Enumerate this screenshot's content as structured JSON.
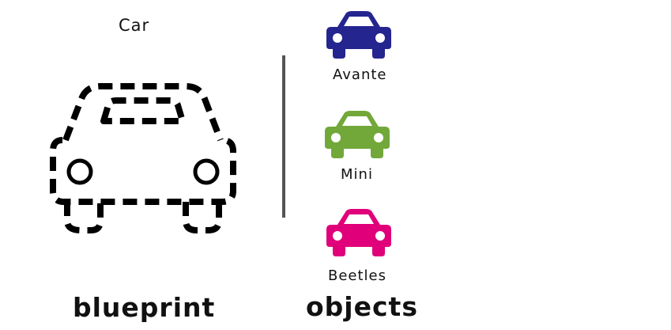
{
  "blueprint": {
    "title": "Car",
    "caption": "blueprint",
    "icon": "dashed-car-outline"
  },
  "objects": {
    "caption": "objects",
    "items": [
      {
        "label": "Avante",
        "color": "#24258f",
        "icon": "car-icon"
      },
      {
        "label": "Mini",
        "color": "#72a83a",
        "icon": "car-icon"
      },
      {
        "label": "Beetles",
        "color": "#e0007a",
        "icon": "car-icon"
      }
    ]
  }
}
